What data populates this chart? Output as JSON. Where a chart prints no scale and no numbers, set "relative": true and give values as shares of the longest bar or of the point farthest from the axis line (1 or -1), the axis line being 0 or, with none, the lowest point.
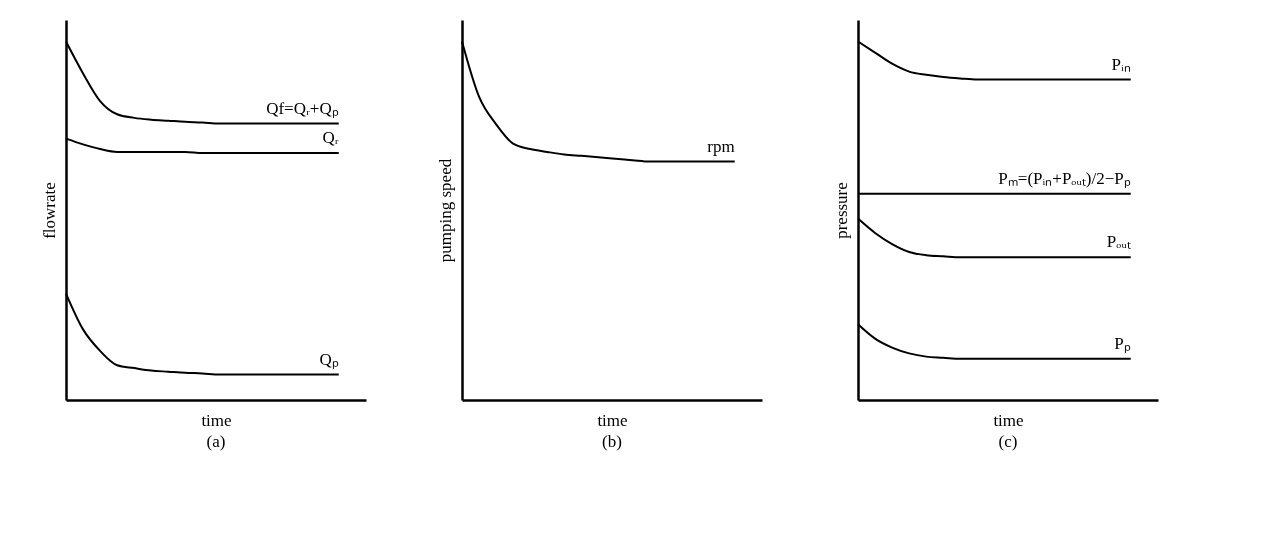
{
  "chart_data": [
    {
      "type": "line",
      "title": "(a)",
      "xlabel": "time",
      "ylabel": "flowrate",
      "relative": true,
      "legend": false,
      "grid": false,
      "tick_labels": false,
      "categories": [
        null,
        null,
        null,
        null,
        null,
        null,
        null,
        null,
        null,
        null,
        null,
        null,
        null,
        null,
        null,
        null,
        null
      ],
      "series": [
        {
          "name": "Qf=Qᵣ+Qₚ",
          "color": "#000000",
          "values": [
            1,
            0.911,
            0.834,
            0.797,
            0.787,
            0.782,
            0.779,
            0.776,
            0.774,
            0.771,
            0.771,
            0.771,
            0.771,
            0.771,
            0.771,
            0.771,
            0.771
          ]
        },
        {
          "name": "Qᵣ",
          "color": "#000000",
          "values": [
            0.729,
            0.713,
            0.7,
            0.692,
            0.692,
            0.692,
            0.692,
            0.692,
            0.689,
            0.689,
            0.689,
            0.689,
            0.689,
            0.689,
            0.689,
            0.689,
            0.689
          ]
        },
        {
          "name": "Qₚ",
          "color": "#000000",
          "values": [
            0.297,
            0.197,
            0.137,
            0.097,
            0.089,
            0.082,
            0.079,
            0.076,
            0.074,
            0.071,
            0.071,
            0.071,
            0.071,
            0.071,
            0.071,
            0.071,
            0.071
          ]
        }
      ]
    },
    {
      "type": "line",
      "title": "(b)",
      "xlabel": "time",
      "ylabel": "pumping speed",
      "relative": true,
      "legend": false,
      "grid": false,
      "tick_labels": false,
      "categories": [
        null,
        null,
        null,
        null,
        null,
        null,
        null,
        null,
        null,
        null,
        null,
        null,
        null,
        null,
        null,
        null,
        null
      ],
      "series": [
        {
          "name": "rpm",
          "color": "#000000",
          "values": [
            1,
            0.846,
            0.769,
            0.715,
            0.7,
            0.692,
            0.685,
            0.681,
            0.677,
            0.673,
            0.669,
            0.665,
            0.665,
            0.665,
            0.665,
            0.665,
            0.665
          ]
        }
      ]
    },
    {
      "type": "line",
      "title": "(c)",
      "xlabel": "time",
      "ylabel": "pressure",
      "relative": true,
      "legend": false,
      "grid": false,
      "tick_labels": false,
      "categories": [
        null,
        null,
        null,
        null,
        null,
        null,
        null,
        null,
        null,
        null,
        null,
        null,
        null,
        null,
        null,
        null,
        null
      ],
      "series": [
        {
          "name": "Pᵢₙ",
          "color": "#000000",
          "values": [
            1,
            0.969,
            0.938,
            0.916,
            0.907,
            0.901,
            0.897,
            0.894,
            0.894,
            0.894,
            0.894,
            0.894,
            0.894,
            0.894,
            0.894,
            0.894,
            0.894
          ]
        },
        {
          "name": "Pₘ=(Pᵢₙ+Pₒᵤₜ)/2−Pₚ",
          "color": "#000000",
          "values": [
            0.575,
            0.575,
            0.575,
            0.575,
            0.575,
            0.575,
            0.575,
            0.575,
            0.575,
            0.575,
            0.575,
            0.575,
            0.575,
            0.575,
            0.575,
            0.575,
            0.575
          ]
        },
        {
          "name": "Pₒᵤₜ",
          "color": "#000000",
          "values": [
            0.506,
            0.466,
            0.435,
            0.413,
            0.404,
            0.401,
            0.398,
            0.398,
            0.398,
            0.398,
            0.398,
            0.398,
            0.398,
            0.398,
            0.398,
            0.398,
            0.398
          ]
        },
        {
          "name": "Pₚ",
          "color": "#000000",
          "values": [
            0.211,
            0.171,
            0.146,
            0.13,
            0.121,
            0.118,
            0.115,
            0.115,
            0.115,
            0.115,
            0.115,
            0.115,
            0.115,
            0.115,
            0.115,
            0.115,
            0.115
          ]
        }
      ]
    }
  ]
}
